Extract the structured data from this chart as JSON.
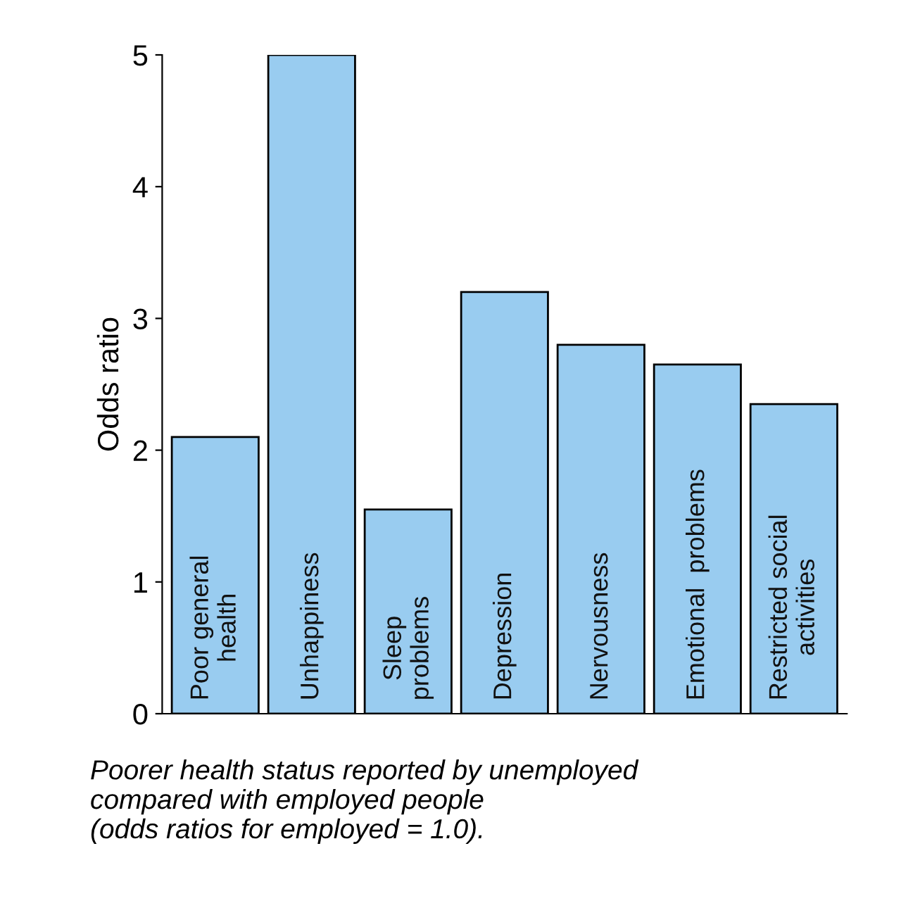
{
  "chart_data": {
    "type": "bar",
    "ylabel": "Odds ratio",
    "categories": [
      "Poor general\nhealth",
      "Unhappiness",
      "Sleep\nproblems",
      "Depression",
      "Nervousness",
      "Emotional  problems",
      "Restricted social\nactivities"
    ],
    "values": [
      2.1,
      5.0,
      1.55,
      3.2,
      2.8,
      2.65,
      2.35
    ],
    "color": "#99ccf0",
    "ylim": [
      0,
      5
    ],
    "yticks": [
      0,
      1,
      2,
      3,
      4,
      5
    ],
    "grid": false,
    "legend": false,
    "annotations": [
      "Poorer health status reported by unemployed\ncompared with employed people\n(odds ratios for employed = 1.0)."
    ]
  }
}
